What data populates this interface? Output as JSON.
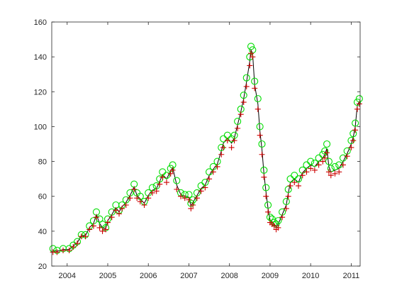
{
  "chart_data": {
    "type": "scatter",
    "title": "",
    "xlabel": "",
    "ylabel": "",
    "x_unit": "year",
    "xlim": [
      2003.62,
      2011.22
    ],
    "ylim": [
      20,
      160
    ],
    "x_ticks": [
      2004,
      2005,
      2006,
      2007,
      2008,
      2009,
      2010,
      2011
    ],
    "y_ticks": [
      20,
      40,
      60,
      80,
      100,
      120,
      140,
      160
    ],
    "grid": false,
    "legend": "none",
    "colors": {
      "background": "#ffffff",
      "axes": "#262626",
      "upper_marker": "#00dd00",
      "lower_marker": "#cc0000",
      "line": "#000000"
    },
    "series": [
      {
        "marker": "circle",
        "color": "#00dd00",
        "points": [
          [
            2003.65,
            30
          ],
          [
            2003.75,
            29
          ],
          [
            2003.9,
            30
          ],
          [
            2004.05,
            30
          ],
          [
            2004.15,
            32
          ],
          [
            2004.25,
            34
          ],
          [
            2004.35,
            38
          ],
          [
            2004.45,
            38
          ],
          [
            2004.55,
            43
          ],
          [
            2004.65,
            46
          ],
          [
            2004.72,
            51
          ],
          [
            2004.8,
            47
          ],
          [
            2004.87,
            44
          ],
          [
            2004.95,
            42
          ],
          [
            2005.0,
            47
          ],
          [
            2005.1,
            51
          ],
          [
            2005.2,
            55
          ],
          [
            2005.28,
            52
          ],
          [
            2005.35,
            55
          ],
          [
            2005.45,
            58
          ],
          [
            2005.55,
            62
          ],
          [
            2005.65,
            67
          ],
          [
            2005.72,
            62
          ],
          [
            2005.8,
            60
          ],
          [
            2005.9,
            57
          ],
          [
            2006.0,
            62
          ],
          [
            2006.1,
            65
          ],
          [
            2006.2,
            66
          ],
          [
            2006.28,
            70
          ],
          [
            2006.35,
            74
          ],
          [
            2006.45,
            72
          ],
          [
            2006.55,
            76
          ],
          [
            2006.6,
            78
          ],
          [
            2006.7,
            69
          ],
          [
            2006.8,
            62
          ],
          [
            2006.9,
            61
          ],
          [
            2007.0,
            61
          ],
          [
            2007.05,
            56
          ],
          [
            2007.1,
            58
          ],
          [
            2007.2,
            62
          ],
          [
            2007.3,
            66
          ],
          [
            2007.4,
            68
          ],
          [
            2007.5,
            74
          ],
          [
            2007.6,
            77
          ],
          [
            2007.7,
            80
          ],
          [
            2007.8,
            88
          ],
          [
            2007.85,
            93
          ],
          [
            2007.95,
            95
          ],
          [
            2008.05,
            93
          ],
          [
            2008.12,
            95
          ],
          [
            2008.2,
            103
          ],
          [
            2008.28,
            110
          ],
          [
            2008.35,
            118
          ],
          [
            2008.42,
            128
          ],
          [
            2008.5,
            140
          ],
          [
            2008.53,
            146
          ],
          [
            2008.57,
            144
          ],
          [
            2008.62,
            126
          ],
          [
            2008.7,
            116
          ],
          [
            2008.75,
            100
          ],
          [
            2008.8,
            90
          ],
          [
            2008.85,
            75
          ],
          [
            2008.9,
            65
          ],
          [
            2008.95,
            55
          ],
          [
            2009.0,
            48
          ],
          [
            2009.05,
            47
          ],
          [
            2009.1,
            45
          ],
          [
            2009.15,
            44
          ],
          [
            2009.2,
            46
          ],
          [
            2009.3,
            51
          ],
          [
            2009.4,
            57
          ],
          [
            2009.45,
            64
          ],
          [
            2009.5,
            70
          ],
          [
            2009.6,
            72
          ],
          [
            2009.7,
            70
          ],
          [
            2009.8,
            75
          ],
          [
            2009.9,
            78
          ],
          [
            2010.0,
            80
          ],
          [
            2010.1,
            79
          ],
          [
            2010.2,
            82
          ],
          [
            2010.3,
            84
          ],
          [
            2010.35,
            86
          ],
          [
            2010.4,
            90
          ],
          [
            2010.45,
            80
          ],
          [
            2010.5,
            76
          ],
          [
            2010.6,
            77
          ],
          [
            2010.7,
            78
          ],
          [
            2010.8,
            82
          ],
          [
            2010.9,
            86
          ],
          [
            2011.0,
            92
          ],
          [
            2011.05,
            96
          ],
          [
            2011.1,
            102
          ],
          [
            2011.15,
            114
          ],
          [
            2011.2,
            116
          ]
        ]
      },
      {
        "marker": "plus",
        "color": "#cc0000",
        "points": [
          [
            2003.65,
            28
          ],
          [
            2003.75,
            28
          ],
          [
            2003.9,
            29
          ],
          [
            2004.05,
            29
          ],
          [
            2004.15,
            31
          ],
          [
            2004.25,
            33
          ],
          [
            2004.35,
            37
          ],
          [
            2004.45,
            37
          ],
          [
            2004.55,
            41
          ],
          [
            2004.65,
            43
          ],
          [
            2004.72,
            48
          ],
          [
            2004.8,
            42
          ],
          [
            2004.87,
            40
          ],
          [
            2004.95,
            41
          ],
          [
            2005.0,
            45
          ],
          [
            2005.1,
            48
          ],
          [
            2005.2,
            52
          ],
          [
            2005.28,
            50
          ],
          [
            2005.35,
            53
          ],
          [
            2005.45,
            55
          ],
          [
            2005.55,
            59
          ],
          [
            2005.65,
            64
          ],
          [
            2005.72,
            59
          ],
          [
            2005.8,
            57
          ],
          [
            2005.9,
            55
          ],
          [
            2006.0,
            59
          ],
          [
            2006.1,
            62
          ],
          [
            2006.2,
            63
          ],
          [
            2006.28,
            67
          ],
          [
            2006.35,
            71
          ],
          [
            2006.45,
            68
          ],
          [
            2006.55,
            73
          ],
          [
            2006.6,
            75
          ],
          [
            2006.7,
            64
          ],
          [
            2006.8,
            60
          ],
          [
            2006.9,
            59
          ],
          [
            2007.0,
            58
          ],
          [
            2007.05,
            53
          ],
          [
            2007.1,
            55
          ],
          [
            2007.2,
            59
          ],
          [
            2007.3,
            63
          ],
          [
            2007.4,
            65
          ],
          [
            2007.5,
            70
          ],
          [
            2007.6,
            74
          ],
          [
            2007.7,
            77
          ],
          [
            2007.8,
            84
          ],
          [
            2007.85,
            88
          ],
          [
            2007.95,
            92
          ],
          [
            2008.05,
            88
          ],
          [
            2008.12,
            92
          ],
          [
            2008.2,
            99
          ],
          [
            2008.28,
            107
          ],
          [
            2008.35,
            114
          ],
          [
            2008.42,
            123
          ],
          [
            2008.5,
            135
          ],
          [
            2008.53,
            142
          ],
          [
            2008.57,
            140
          ],
          [
            2008.62,
            122
          ],
          [
            2008.7,
            110
          ],
          [
            2008.75,
            95
          ],
          [
            2008.8,
            84
          ],
          [
            2008.85,
            71
          ],
          [
            2008.9,
            60
          ],
          [
            2008.95,
            51
          ],
          [
            2009.0,
            45
          ],
          [
            2009.05,
            44
          ],
          [
            2009.1,
            43
          ],
          [
            2009.15,
            41
          ],
          [
            2009.2,
            42
          ],
          [
            2009.3,
            48
          ],
          [
            2009.4,
            53
          ],
          [
            2009.45,
            60
          ],
          [
            2009.5,
            66
          ],
          [
            2009.6,
            68
          ],
          [
            2009.7,
            66
          ],
          [
            2009.8,
            72
          ],
          [
            2009.9,
            74
          ],
          [
            2010.0,
            76
          ],
          [
            2010.1,
            75
          ],
          [
            2010.2,
            78
          ],
          [
            2010.3,
            80
          ],
          [
            2010.35,
            82
          ],
          [
            2010.4,
            85
          ],
          [
            2010.45,
            74
          ],
          [
            2010.5,
            72
          ],
          [
            2010.6,
            73
          ],
          [
            2010.7,
            74
          ],
          [
            2010.8,
            78
          ],
          [
            2010.9,
            83
          ],
          [
            2011.0,
            88
          ],
          [
            2011.05,
            92
          ],
          [
            2011.1,
            98
          ],
          [
            2011.15,
            110
          ],
          [
            2011.2,
            113
          ]
        ]
      }
    ]
  }
}
